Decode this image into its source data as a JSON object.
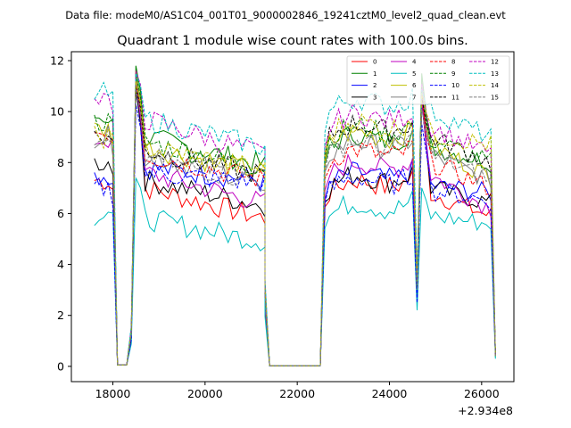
{
  "figure": {
    "suptitle": "Data file: modeM0/AS1C04_001T01_9000002846_19241cztM0_level2_quad_clean.evt"
  },
  "chart_data": {
    "type": "line",
    "title": "Quadrant 1 module wise count rates with 100.0s bins.",
    "xlabel": "",
    "ylabel": "",
    "x_offset_label": "+2.934e8",
    "xlim": [
      17100,
      26700
    ],
    "ylim": [
      -0.6,
      12.35
    ],
    "xticks": [
      18000,
      20000,
      22000,
      24000,
      26000
    ],
    "xtick_labels": [
      "18000",
      "20000",
      "22000",
      "24000",
      "26000"
    ],
    "yticks": [
      0,
      2,
      4,
      6,
      8,
      10,
      12
    ],
    "ytick_labels": [
      "0",
      "2",
      "4",
      "6",
      "8",
      "10",
      "12"
    ],
    "legend": {
      "placement": "top-right",
      "columns": 4
    },
    "gaps": [
      {
        "x": [
          18100,
          18200,
          18300
        ],
        "y": [
          0,
          0,
          0
        ]
      },
      {
        "x": [
          21400,
          21500,
          21600,
          21700,
          21800,
          21900,
          22000,
          22100,
          22200,
          22300,
          22400,
          22500
        ],
        "y": [
          0,
          0,
          0,
          0,
          0,
          0,
          0,
          0,
          0,
          0,
          0,
          0
        ]
      }
    ],
    "segments": [
      {
        "x_start": 17600,
        "x_end": 18000,
        "count": 5,
        "start_bump": 0.0,
        "end_values": [
          0.3
        ]
      },
      {
        "x_start": 18400,
        "x_end": 21300,
        "count": 30,
        "start_value_low": 1.0,
        "peak_index": 1
      },
      {
        "x_start": 22600,
        "x_end": 26300,
        "count": 38
      }
    ],
    "series": [
      {
        "name": "0",
        "color": "#ff0000",
        "dash": "solid",
        "pre": 7.3,
        "peak": 11.6,
        "mid_start": 7.0,
        "mid_end": 5.8,
        "post_start": 6.8,
        "post_end": 5.9,
        "dip": 2.8,
        "end": 0.4
      },
      {
        "name": "1",
        "color": "#008000",
        "dash": "solid",
        "pre": 9.8,
        "peak": 11.8,
        "mid_start": 9.0,
        "mid_end": 7.9,
        "post_start": 8.6,
        "post_end": 8.0,
        "dip": 3.3,
        "end": 0.5
      },
      {
        "name": "2",
        "color": "#0000ff",
        "dash": "solid",
        "pre": 7.5,
        "peak": 10.8,
        "mid_start": 7.8,
        "mid_end": 7.3,
        "post_start": 7.1,
        "post_end": 6.8,
        "dip": 2.6,
        "end": 0.4
      },
      {
        "name": "3",
        "color": "#000000",
        "dash": "solid",
        "pre": 8.0,
        "peak": 10.9,
        "mid_start": 7.3,
        "mid_end": 6.3,
        "post_start": 7.0,
        "post_end": 6.4,
        "dip": 2.7,
        "end": 0.4
      },
      {
        "name": "4",
        "color": "#c000c0",
        "dash": "solid",
        "pre": 8.9,
        "peak": 11.1,
        "mid_start": 7.6,
        "mid_end": 6.4,
        "post_start": 7.5,
        "post_end": 6.2,
        "dip": 2.9,
        "end": 0.4
      },
      {
        "name": "5",
        "color": "#00bfbf",
        "dash": "solid",
        "pre": 5.9,
        "peak": 7.4,
        "mid_start": 5.8,
        "mid_end": 4.9,
        "post_start": 5.9,
        "post_end": 5.6,
        "dip": 2.2,
        "end": 0.3
      },
      {
        "name": "6",
        "color": "#bfbf00",
        "dash": "solid",
        "pre": 9.3,
        "peak": 11.6,
        "mid_start": 8.6,
        "mid_end": 7.6,
        "post_start": 8.7,
        "post_end": 7.4,
        "dip": 3.2,
        "end": 0.5
      },
      {
        "name": "7",
        "color": "#808080",
        "dash": "solid",
        "pre": 9.0,
        "peak": 11.4,
        "mid_start": 8.3,
        "mid_end": 7.3,
        "post_start": 8.3,
        "post_end": 7.3,
        "dip": 3.0,
        "end": 0.4
      },
      {
        "name": "8",
        "color": "#ff0000",
        "dash": "dashed",
        "pre": 9.2,
        "peak": 11.1,
        "mid_start": 8.3,
        "mid_end": 7.3,
        "post_start": 8.0,
        "post_end": 7.0,
        "dip": 3.0,
        "end": 0.4
      },
      {
        "name": "9",
        "color": "#008000",
        "dash": "dashed",
        "pre": 9.6,
        "peak": 11.5,
        "mid_start": 8.8,
        "mid_end": 7.8,
        "post_start": 8.9,
        "post_end": 8.0,
        "dip": 3.2,
        "end": 0.5
      },
      {
        "name": "10",
        "color": "#0000ff",
        "dash": "dashed",
        "pre": 7.0,
        "peak": 10.3,
        "mid_start": 7.6,
        "mid_end": 7.2,
        "post_start": 6.9,
        "post_end": 6.5,
        "dip": 2.5,
        "end": 0.4
      },
      {
        "name": "11",
        "color": "#000000",
        "dash": "dashed",
        "pre": 9.0,
        "peak": 11.0,
        "mid_start": 8.5,
        "mid_end": 7.5,
        "post_start": 9.0,
        "post_end": 8.0,
        "dip": 3.1,
        "end": 0.5
      },
      {
        "name": "12",
        "color": "#c000c0",
        "dash": "dashed",
        "pre": 10.3,
        "peak": 11.6,
        "mid_start": 9.7,
        "mid_end": 8.3,
        "post_start": 9.4,
        "post_end": 8.3,
        "dip": 3.4,
        "end": 0.5
      },
      {
        "name": "13",
        "color": "#00bfbf",
        "dash": "dashed",
        "pre": 10.7,
        "peak": 11.5,
        "mid_start": 9.7,
        "mid_end": 8.6,
        "post_start": 10.0,
        "post_end": 9.0,
        "dip": 3.5,
        "end": 0.3
      },
      {
        "name": "14",
        "color": "#bfbf00",
        "dash": "dashed",
        "pre": 9.0,
        "peak": 11.2,
        "mid_start": 8.6,
        "mid_end": 7.7,
        "post_start": 9.1,
        "post_end": 8.7,
        "dip": 3.2,
        "end": 0.4
      },
      {
        "name": "15",
        "color": "#808080",
        "dash": "dashed",
        "pre": 8.6,
        "peak": 10.9,
        "mid_start": 8.2,
        "mid_end": 7.2,
        "post_start": 8.3,
        "post_end": 7.3,
        "dip": 3.0,
        "end": 0.4
      }
    ]
  }
}
